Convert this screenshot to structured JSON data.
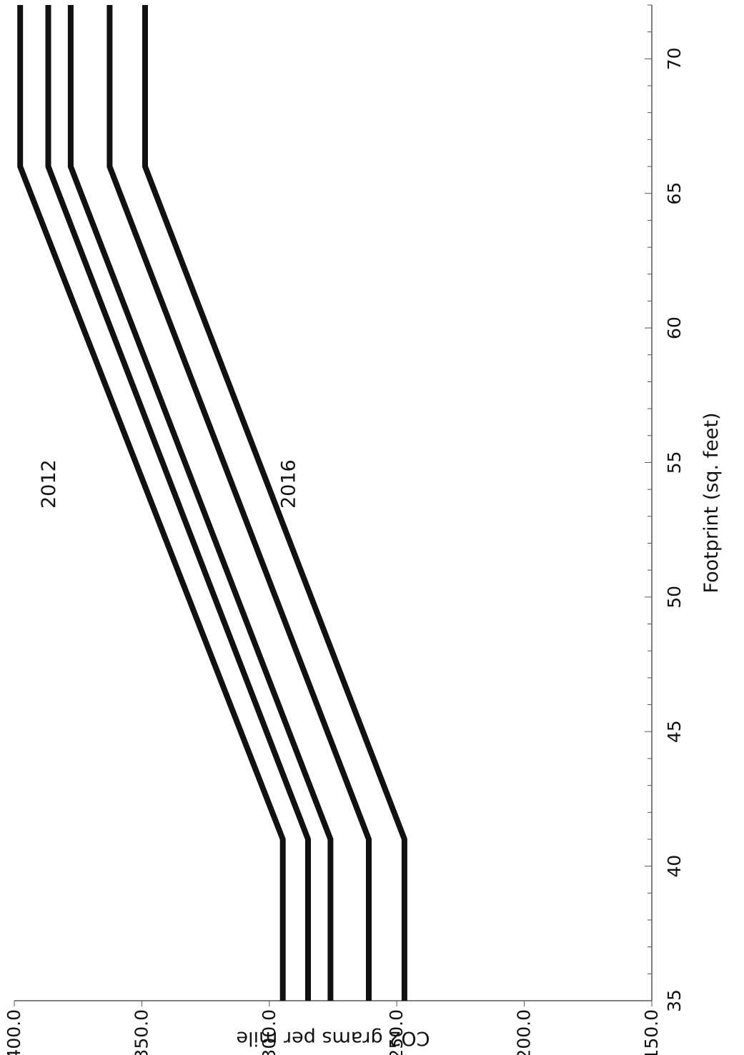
{
  "chart_data": {
    "type": "line",
    "title": "",
    "xlabel": "Footprint (sq. feet)",
    "ylabel": "CO2 grams per mile",
    "xlim": [
      35,
      72
    ],
    "ylim": [
      150,
      400
    ],
    "x_ticks": [
      35,
      40,
      45,
      50,
      55,
      60,
      65,
      70
    ],
    "y_ticks": [
      150,
      200,
      250,
      300,
      350,
      400
    ],
    "x_tick_labels": [
      "35",
      "40",
      "45",
      "50",
      "55",
      "60",
      "65",
      "70"
    ],
    "y_tick_labels": [
      "150.0",
      "200.0",
      "250.0",
      "300.0",
      "350.0",
      "400.0"
    ],
    "grid": false,
    "legend": "none",
    "line_color": "#111111",
    "series": [
      {
        "x": [
          35,
          41,
          66,
          72
        ],
        "values": [
          294.7,
          294.7,
          397.7,
          397.7
        ]
      },
      {
        "x": [
          35,
          41,
          66,
          72
        ],
        "values": [
          284.8,
          284.8,
          386.7,
          386.7
        ]
      },
      {
        "x": [
          35,
          41,
          66,
          72
        ],
        "values": [
          276.0,
          276.0,
          377.9,
          377.9
        ]
      },
      {
        "x": [
          35,
          41,
          66,
          72
        ],
        "values": [
          261.0,
          261.0,
          362.6,
          362.6
        ]
      },
      {
        "x": [
          35,
          41,
          66,
          72
        ],
        "values": [
          247.0,
          247.0,
          348.7,
          348.7
        ]
      }
    ],
    "annotations": [
      {
        "text": "2012",
        "x": 54.2,
        "y": 384
      },
      {
        "text": "2016",
        "x": 54.2,
        "y": 290
      }
    ]
  }
}
